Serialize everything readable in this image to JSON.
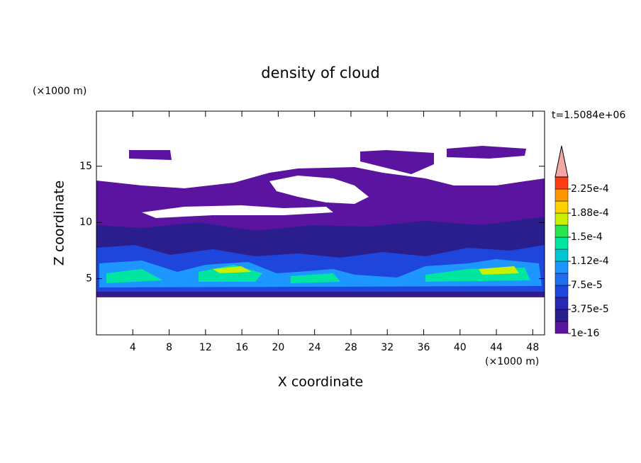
{
  "chart_data": {
    "type": "contour",
    "title": "density of cloud",
    "x_label": "X coordinate",
    "y_label": "Z coordinate",
    "x_unit": "(×1000 m)",
    "y_unit": "(×1000 m)",
    "annotation": "t=1.5084e+06",
    "xlim": [
      0,
      49.3
    ],
    "xticks": [
      4,
      8,
      12,
      16,
      20,
      24,
      28,
      32,
      36,
      40,
      44,
      48
    ],
    "ylim": [
      0,
      19.9
    ],
    "yticks": [
      5,
      10,
      15
    ],
    "colorbar": {
      "lim": [
        1e-16,
        0.00024375
      ],
      "colors": [
        "#5a14a0",
        "#2a1e8c",
        "#2828b4",
        "#1e46dc",
        "#1e6ef0",
        "#1e96ff",
        "#00c8d2",
        "#00e6a0",
        "#28e650",
        "#c8f000",
        "#ffd200",
        "#ff9600",
        "#ff3c14"
      ],
      "over_color": "#f4a6a6",
      "ticks": [
        1e-16,
        {
          "value": 3.75e-05,
          "label": "3.75e-5"
        },
        {
          "value": 7.5e-05,
          "label": "7.5e-5"
        },
        {
          "value": 0.0001125,
          "label": "1.12e-4"
        },
        {
          "value": 0.00015,
          "label": "1.5e-4"
        },
        {
          "value": 0.0001875,
          "label": "1.88e-4"
        },
        {
          "value": 0.000225,
          "label": "2.25e-4"
        }
      ]
    }
  }
}
